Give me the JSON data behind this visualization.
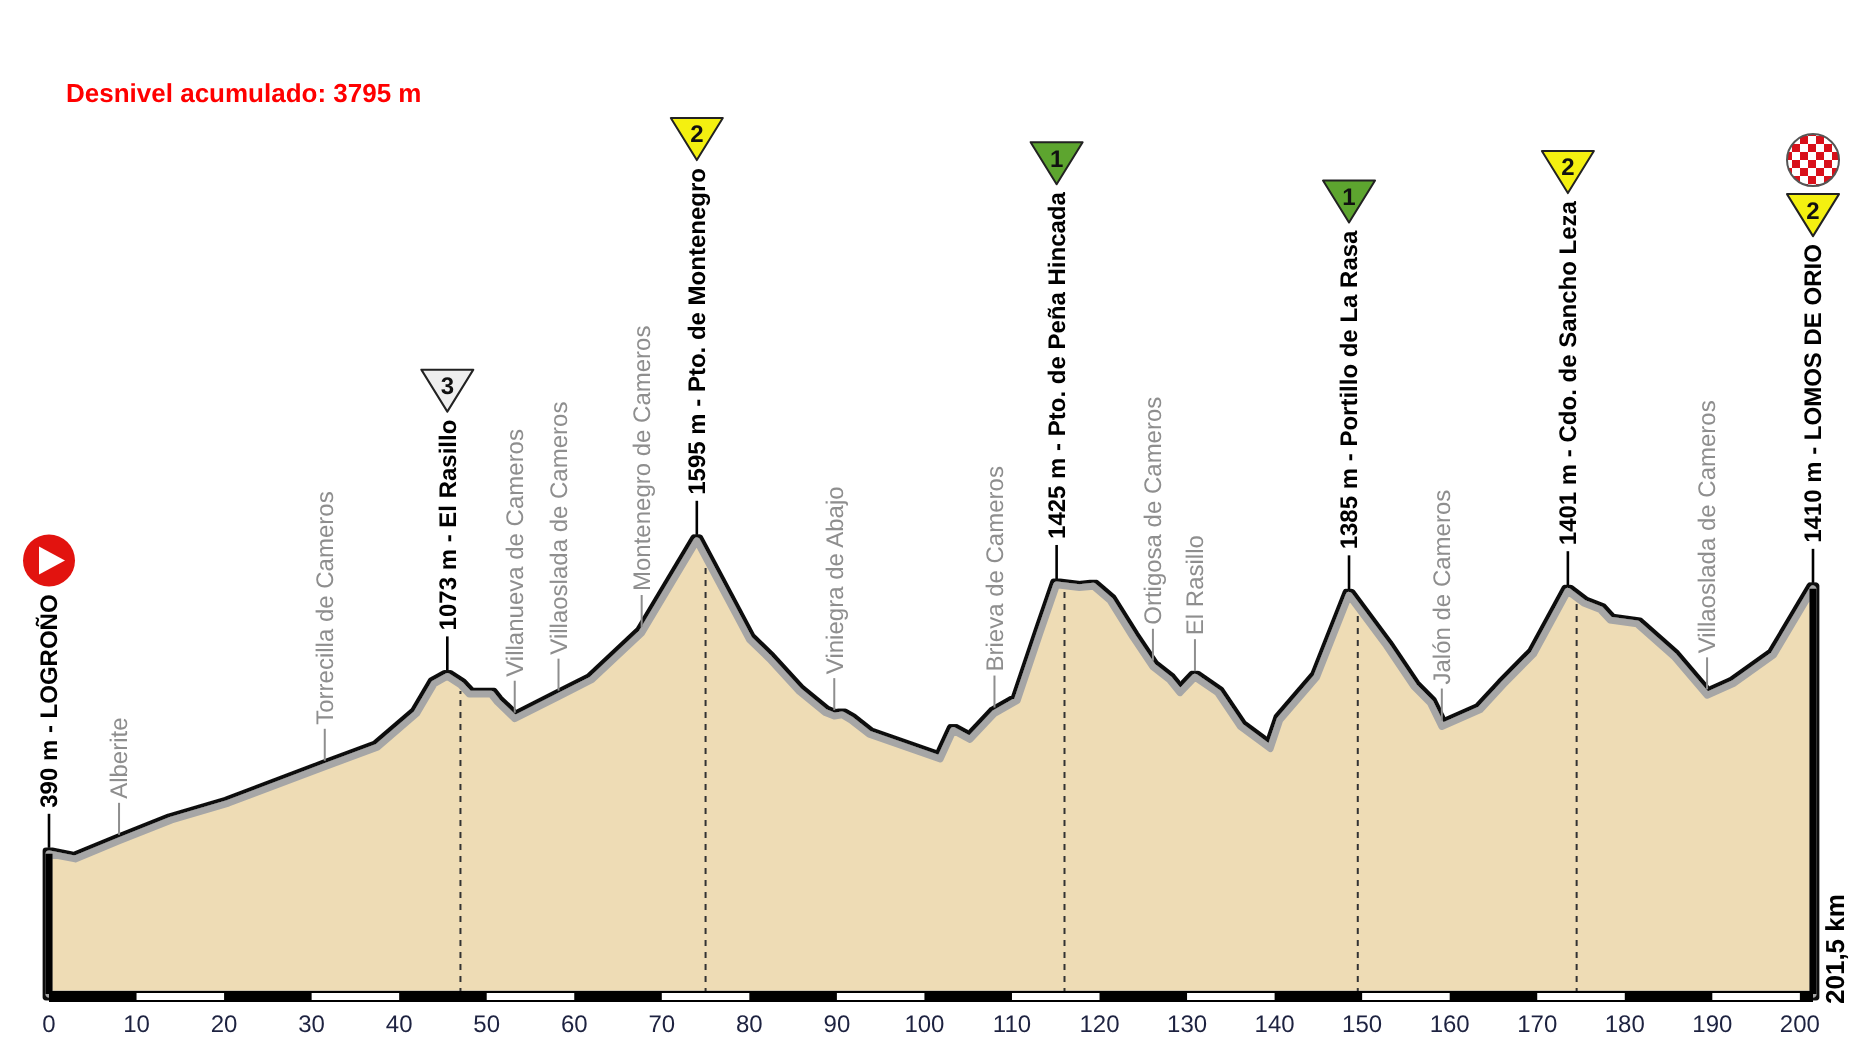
{
  "chart_data": {
    "type": "area",
    "title": "Desnivel acumulado: 3795 m",
    "x": [
      0,
      3,
      8,
      14,
      20.5,
      31.5,
      37.5,
      42,
      44,
      45.5,
      47,
      48,
      50.5,
      51.2,
      53.2,
      58.2,
      62,
      67.7,
      74,
      80,
      82.3,
      85.7,
      88.6,
      89.7,
      90.6,
      91.6,
      93.7,
      101.8,
      103.3,
      105.2,
      108,
      110.6,
      113.2,
      115.1,
      117.7,
      119.3,
      121.2,
      123.8,
      126.1,
      128,
      129.2,
      130.9,
      133.5,
      136.1,
      139.5,
      140.6,
      144.8,
      148.5,
      152.8,
      155.9,
      157.8,
      159.1,
      163.5,
      166.1,
      169.6,
      173.5,
      175.3,
      177.2,
      178.3,
      181.4,
      185.6,
      189.4,
      192.4,
      197,
      201.5
    ],
    "values": [
      390,
      370,
      440,
      520,
      585,
      725,
      800,
      930,
      1045,
      1073,
      1040,
      1005,
      1005,
      975,
      910,
      995,
      1060,
      1240,
      1595,
      1215,
      1140,
      1015,
      935,
      920,
      925,
      905,
      850,
      755,
      865,
      830,
      930,
      980,
      1240,
      1425,
      1415,
      1420,
      1365,
      1225,
      1110,
      1060,
      1010,
      1070,
      1010,
      880,
      795,
      905,
      1070,
      1385,
      1190,
      1035,
      970,
      880,
      945,
      1040,
      1160,
      1401,
      1355,
      1330,
      1290,
      1275,
      1150,
      1000,
      1045,
      1155,
      1410
    ],
    "value_labels": [
      "390 m - LOGROÑO",
      null,
      null,
      null,
      null,
      null,
      null,
      null,
      null,
      "1073 m - El Rasillo",
      null,
      null,
      null,
      null,
      null,
      null,
      null,
      null,
      "1595 m - Pto. de Montenegro",
      null,
      null,
      null,
      null,
      null,
      null,
      null,
      null,
      null,
      null,
      null,
      null,
      null,
      null,
      "1425 m - Pto. de Peña Hincada",
      null,
      null,
      null,
      null,
      null,
      null,
      null,
      null,
      null,
      null,
      null,
      null,
      null,
      "1385 m - Portillo de La Rasa",
      null,
      null,
      null,
      null,
      null,
      null,
      null,
      "1401 m - Cdo. de Sancho Leza",
      null,
      null,
      null,
      null,
      null,
      null,
      null,
      null,
      "1410 m - LOMOS DE ORIO"
    ],
    "color": "#eedcb5",
    "xlim": [
      0,
      201.5
    ],
    "xticks": [
      0,
      10,
      20,
      30,
      40,
      50,
      60,
      70,
      80,
      90,
      100,
      110,
      120,
      130,
      140,
      150,
      160,
      170,
      180,
      190,
      200
    ],
    "tick_labels": "x",
    "ref_lines": [
      {
        "axis": "x",
        "value": 0,
        "line_style": "solid",
        "color": "#000000"
      },
      {
        "axis": "x",
        "value": 47,
        "line_style": "dashed"
      },
      {
        "axis": "x",
        "value": 75,
        "line_style": "dashed"
      },
      {
        "axis": "x",
        "value": 116,
        "line_style": "dashed"
      },
      {
        "axis": "x",
        "value": 149.5,
        "line_style": "dashed"
      },
      {
        "axis": "x",
        "value": 174.5,
        "line_style": "dashed"
      },
      {
        "axis": "x",
        "value": 201.5,
        "line_style": "solid",
        "color": "#000000"
      }
    ],
    "annotations": [
      {
        "text": "Alberite",
        "x": 8,
        "y": 440
      },
      {
        "text": "Torrecilla de Cameros",
        "x": 31.5,
        "y": 725
      },
      {
        "text": "Villanueva de Cameros",
        "x": 53.2,
        "y": 910
      },
      {
        "text": "Villaoslada de Cameros",
        "x": 58.2,
        "y": 995
      },
      {
        "text": "Montenegro de Cameros",
        "x": 67.7,
        "y": 1240
      },
      {
        "text": "Viniegra de Abajo",
        "x": 89.7,
        "y": 920
      },
      {
        "text": "Brieva de Cameros",
        "x": 108,
        "y": 930
      },
      {
        "text": "Ortigosa de Cameros",
        "x": 126.1,
        "y": 1110
      },
      {
        "text": "El Rasillo",
        "x": 130.9,
        "y": 1070
      },
      {
        "text": "Jalón de Cameros",
        "x": 159.1,
        "y": 880
      },
      {
        "text": "Villaoslada de Cameros",
        "x": 189.4,
        "y": 1000
      },
      "3",
      "2",
      "1",
      "1",
      "2",
      "2",
      "201,5 km"
    ]
  }
}
